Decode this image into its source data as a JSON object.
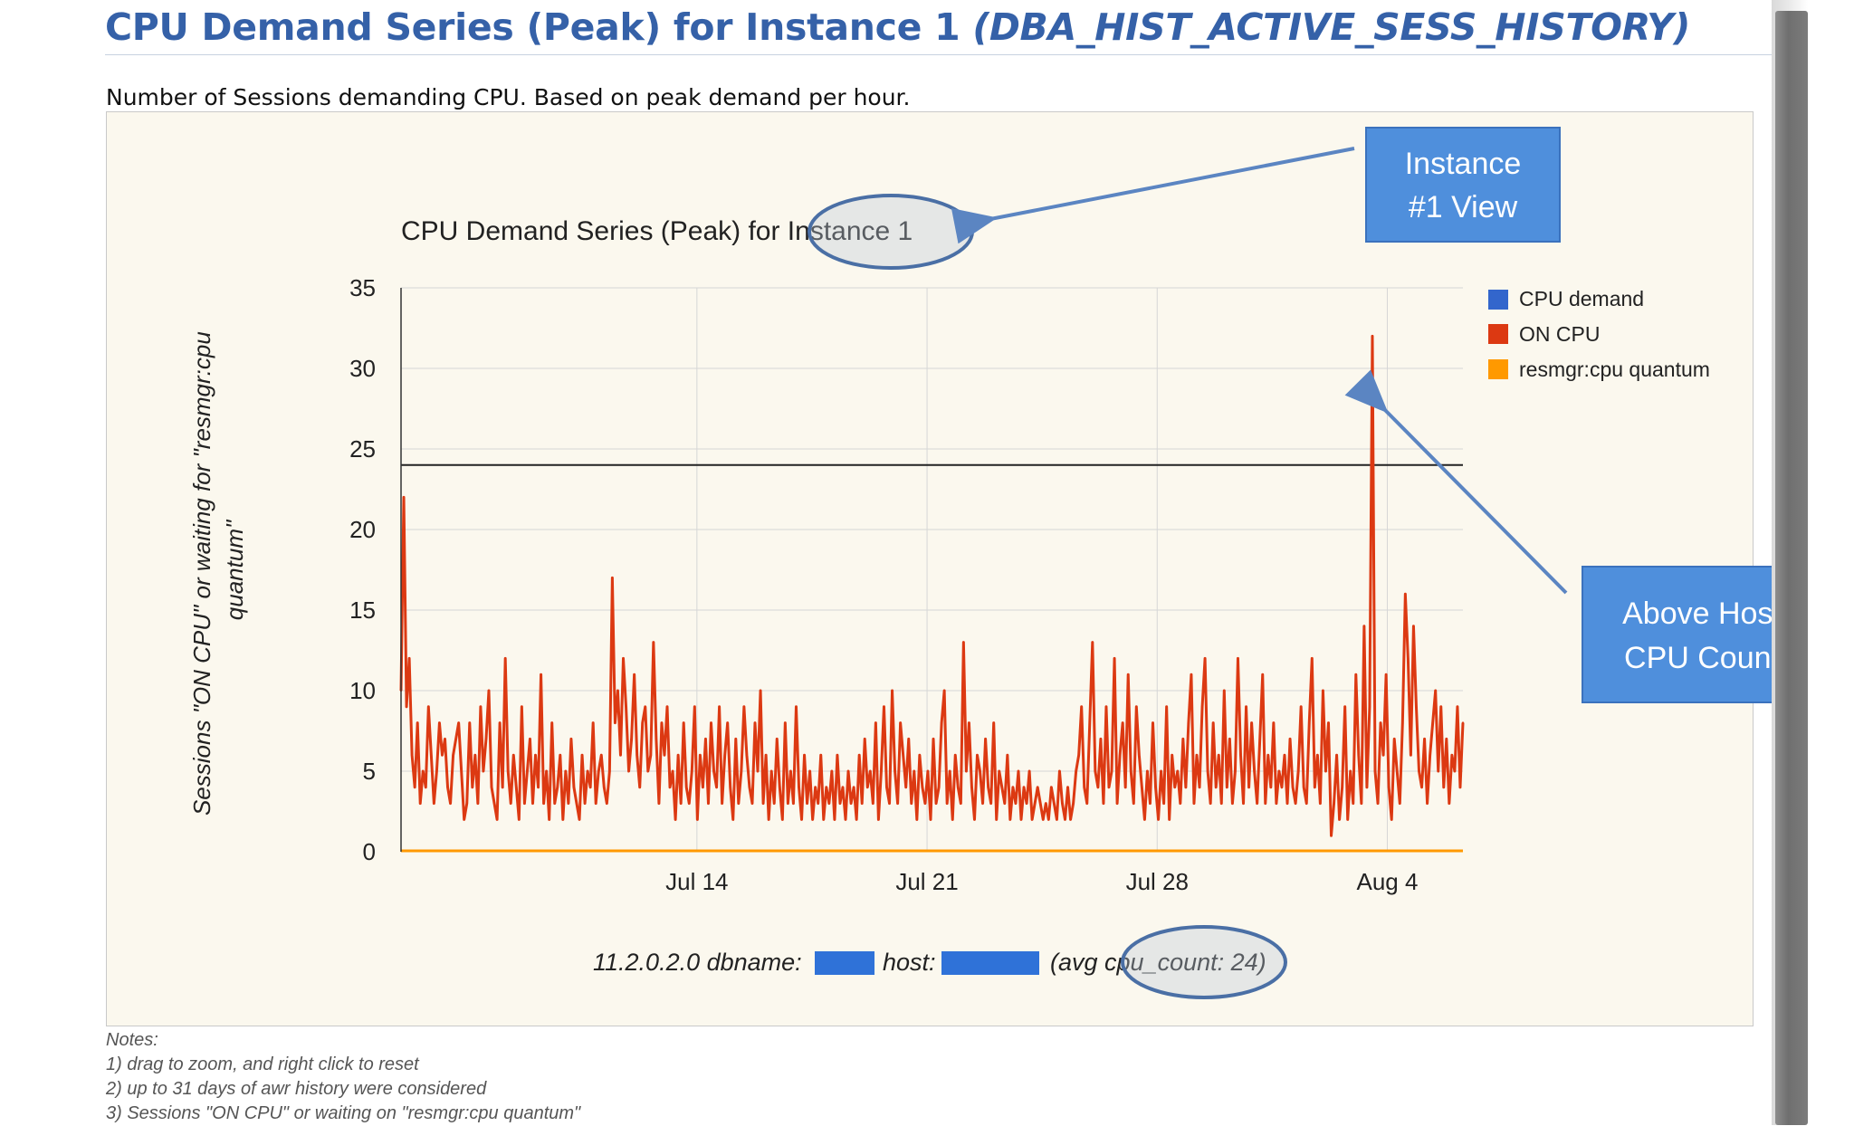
{
  "page": {
    "heading_main": "CPU Demand Series (Peak) for Instance 1",
    "heading_source": "(DBA_HIST_ACTIVE_SESS_HISTORY)",
    "subtitle": "Number of Sessions demanding CPU. Based on peak demand per hour.",
    "notes_title": "Notes:",
    "notes": [
      "1) drag to zoom, and right click to reset",
      "2) up to 31 days of awr history were considered",
      "3) Sessions \"ON CPU\" or waiting on \"resmgr:cpu quantum\""
    ]
  },
  "callouts": {
    "instance": "Instance #1 View",
    "instance_lines": [
      "Instance",
      "#1 View"
    ],
    "cpu_count": "Above Host CPU Count",
    "cpu_count_lines": [
      "Above Host",
      "CPU Count"
    ]
  },
  "colors": {
    "heading": "#3561a8",
    "cpu_demand": "#3366cc",
    "on_cpu": "#dc3912",
    "resmgr": "#ff9900",
    "callout_fill": "#4f8fdc",
    "highlight_ring": "#4a6fa5"
  },
  "chart_data": {
    "type": "line",
    "title": "CPU Demand Series (Peak) for Instance 1",
    "ylabel": "Sessions \"ON CPU\" or waiting for \"resmgr:cpu quantum\"",
    "xlabel": "",
    "ylim": [
      0,
      35
    ],
    "yticks": [
      0,
      5,
      10,
      15,
      20,
      25,
      30,
      35
    ],
    "x_start": "Jul 5",
    "x_end": "Aug 6",
    "x_days": 32.3,
    "xticks": [
      {
        "label": "Jul 14",
        "day": 9
      },
      {
        "label": "Jul 21",
        "day": 16
      },
      {
        "label": "Jul 28",
        "day": 23
      },
      {
        "label": "Aug 4",
        "day": 30
      }
    ],
    "reference_line": {
      "label": "host cpu_count",
      "value": 24
    },
    "footer": "11.2.0.2.0 dbname:",
    "footer_host": "host:",
    "footer_cpu": "(avg cpu_count: 24)",
    "legend": [
      "CPU demand",
      "ON CPU",
      "resmgr:cpu quantum"
    ],
    "grid": true,
    "legend_position": "right",
    "points_per_day": 8,
    "series": [
      {
        "name": "ON CPU",
        "values": [
          10,
          22,
          9,
          12,
          6,
          4,
          8,
          3,
          5,
          4,
          9,
          6,
          3,
          5,
          8,
          6,
          7,
          4,
          3,
          6,
          7,
          8,
          5,
          2,
          3,
          8,
          4,
          6,
          3,
          9,
          5,
          7,
          10,
          4,
          3,
          2,
          8,
          4,
          12,
          5,
          3,
          6,
          4,
          2,
          9,
          3,
          5,
          7,
          3,
          6,
          4,
          11,
          3,
          5,
          2,
          8,
          3,
          4,
          6,
          2,
          5,
          3,
          7,
          4,
          3,
          2,
          6,
          3,
          5,
          4,
          8,
          3,
          5,
          6,
          4,
          3,
          5,
          17,
          8,
          10,
          6,
          12,
          9,
          5,
          7,
          11,
          6,
          4,
          8,
          9,
          5,
          6,
          13,
          7,
          3,
          8,
          6,
          9,
          4,
          5,
          2,
          6,
          3,
          8,
          4,
          3,
          5,
          9,
          2,
          6,
          4,
          7,
          3,
          8,
          5,
          4,
          9,
          3,
          6,
          8,
          4,
          2,
          7,
          3,
          5,
          9,
          6,
          4,
          3,
          8,
          5,
          10,
          3,
          6,
          2,
          5,
          3,
          7,
          4,
          2,
          8,
          3,
          5,
          3,
          9,
          4,
          2,
          6,
          3,
          5,
          2,
          4,
          3,
          6,
          2,
          4,
          3,
          5,
          2,
          6,
          3,
          4,
          2,
          5,
          3,
          4,
          2,
          6,
          3,
          7,
          4,
          5,
          3,
          8,
          2,
          5,
          9,
          4,
          3,
          10,
          5,
          3,
          8,
          6,
          4,
          7,
          3,
          5,
          2,
          6,
          4,
          3,
          5,
          2,
          7,
          3,
          4,
          8,
          10,
          3,
          5,
          2,
          6,
          4,
          3,
          13,
          5,
          8,
          4,
          2,
          6,
          5,
          3,
          7,
          4,
          3,
          8,
          2,
          5,
          4,
          3,
          6,
          2,
          4,
          3,
          5,
          2,
          4,
          3,
          5,
          2,
          3,
          4,
          3,
          2,
          3,
          2,
          4,
          3,
          2,
          5,
          3,
          2,
          4,
          2,
          3,
          5,
          6,
          9,
          4,
          3,
          8,
          13,
          5,
          4,
          7,
          3,
          9,
          4,
          5,
          12,
          3,
          6,
          8,
          4,
          11,
          5,
          3,
          9,
          6,
          4,
          2,
          5,
          3,
          8,
          4,
          2,
          5,
          3,
          9,
          2,
          6,
          4,
          5,
          3,
          7,
          4,
          8,
          11,
          3,
          6,
          4,
          9,
          12,
          5,
          3,
          8,
          4,
          6,
          3,
          10,
          4,
          7,
          3,
          5,
          12,
          6,
          3,
          9,
          4,
          8,
          5,
          3,
          7,
          11,
          3,
          6,
          4,
          8,
          3,
          5,
          4,
          6,
          3,
          7,
          4,
          3,
          5,
          9,
          4,
          3,
          8,
          12,
          4,
          6,
          3,
          10,
          5,
          8,
          1,
          3,
          6,
          2,
          4,
          9,
          2,
          5,
          3,
          11,
          6,
          3,
          14,
          4,
          9,
          32,
          5,
          3,
          8,
          6,
          11,
          4,
          2,
          7,
          5,
          3,
          8,
          16,
          12,
          6,
          14,
          9,
          5,
          4,
          7,
          3,
          6,
          8,
          10,
          5,
          9,
          4,
          7,
          3,
          6,
          5,
          9,
          4,
          8
        ]
      },
      {
        "name": "resmgr:cpu quantum",
        "values": [
          0,
          0
        ]
      },
      {
        "name": "CPU demand",
        "values": [
          10,
          22,
          9,
          12,
          6,
          4,
          8,
          3,
          5,
          4,
          9,
          6,
          3,
          5,
          8,
          6,
          7,
          4,
          3,
          6,
          7,
          8,
          5,
          2,
          3,
          8,
          4,
          6,
          3,
          9,
          5,
          7,
          10,
          4,
          3,
          2,
          8,
          4,
          12,
          5,
          3,
          6,
          4,
          2,
          9,
          3,
          5,
          7,
          3,
          6,
          4,
          11,
          3,
          5,
          2,
          8,
          3,
          4,
          6,
          2,
          5,
          3,
          7,
          4,
          3,
          2,
          6,
          3,
          5,
          4,
          8,
          3,
          5,
          6,
          4,
          3,
          5,
          17,
          8,
          10,
          6,
          12,
          9,
          5,
          7,
          11,
          6,
          4,
          8,
          9,
          5,
          6,
          13,
          7,
          3,
          8,
          6,
          9,
          4,
          5,
          2,
          6,
          3,
          8,
          4,
          3,
          5,
          9,
          2,
          6,
          4,
          7,
          3,
          8,
          5,
          4,
          9,
          3,
          6,
          8,
          4,
          2,
          7,
          3,
          5,
          9,
          6,
          4,
          3,
          8,
          5,
          10,
          3,
          6,
          2,
          5,
          3,
          7,
          4,
          2,
          8,
          3,
          5,
          3,
          9,
          4,
          2,
          6,
          3,
          5,
          2,
          4,
          3,
          6,
          2,
          4,
          3,
          5,
          2,
          6,
          3,
          4,
          2,
          5,
          3,
          4,
          2,
          6,
          3,
          7,
          4,
          5,
          3,
          8,
          2,
          5,
          9,
          4,
          3,
          10,
          5,
          3,
          8,
          6,
          4,
          7,
          3,
          5,
          2,
          6,
          4,
          3,
          5,
          2,
          7,
          3,
          4,
          8,
          10,
          3,
          5,
          2,
          6,
          4,
          3,
          13,
          5,
          8,
          4,
          2,
          6,
          5,
          3,
          7,
          4,
          3,
          8,
          2,
          5,
          4,
          3,
          6,
          2,
          4,
          3,
          5,
          2,
          4,
          3,
          5,
          2,
          3,
          4,
          3,
          2,
          3,
          2,
          4,
          3,
          2,
          5,
          3,
          2,
          4,
          2,
          3,
          5,
          6,
          9,
          4,
          3,
          8,
          13,
          5,
          4,
          7,
          3,
          9,
          4,
          5,
          12,
          3,
          6,
          8,
          4,
          11,
          5,
          3,
          9,
          6,
          4,
          2,
          5,
          3,
          8,
          4,
          2,
          5,
          3,
          9,
          2,
          6,
          4,
          5,
          3,
          7,
          4,
          8,
          11,
          3,
          6,
          4,
          9,
          12,
          5,
          3,
          8,
          4,
          6,
          3,
          10,
          4,
          7,
          3,
          5,
          12,
          6,
          3,
          9,
          4,
          8,
          5,
          3,
          7,
          11,
          3,
          6,
          4,
          8,
          3,
          5,
          4,
          6,
          3,
          7,
          4,
          3,
          5,
          9,
          4,
          3,
          8,
          12,
          4,
          6,
          3,
          10,
          5,
          8,
          1,
          3,
          6,
          2,
          4,
          9,
          2,
          5,
          3,
          11,
          6,
          3,
          14,
          4,
          9,
          32,
          5,
          3,
          8,
          6,
          11,
          4,
          2,
          7,
          5,
          3,
          8,
          16,
          12,
          6,
          14,
          9,
          5,
          4,
          7,
          3,
          6,
          8,
          10,
          5,
          9,
          4,
          7,
          3,
          6,
          5,
          9,
          4,
          8
        ]
      }
    ]
  }
}
